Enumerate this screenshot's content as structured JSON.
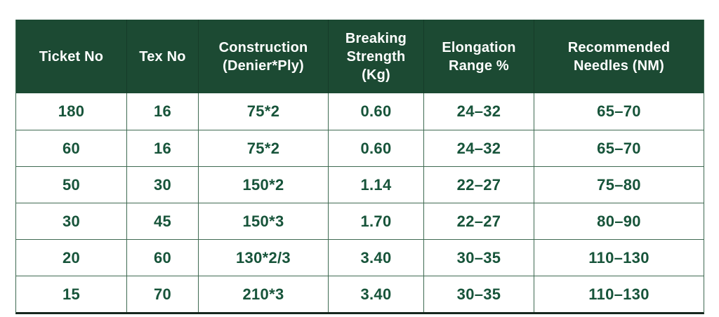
{
  "colors": {
    "header_bg": "#1c4a33",
    "header_text": "#ffffff",
    "cell_text": "#17543a",
    "grid_border": "#3f6a52",
    "bottom_border": "#16271e",
    "page_bg": "#ffffff"
  },
  "table": {
    "columns": [
      {
        "label": "Ticket No"
      },
      {
        "label": "Tex No"
      },
      {
        "label": "Construction\n(Denier*Ply)"
      },
      {
        "label": "Breaking\nStrength (Kg)"
      },
      {
        "label": "Elongation\nRange %"
      },
      {
        "label": "Recommended\nNeedles (NM)"
      }
    ],
    "rows": [
      [
        "180",
        "16",
        "75*2",
        "0.60",
        "24–32",
        "65–70"
      ],
      [
        "60",
        "16",
        "75*2",
        "0.60",
        "24–32",
        "65–70"
      ],
      [
        "50",
        "30",
        "150*2",
        "1.14",
        "22–27",
        "75–80"
      ],
      [
        "30",
        "45",
        "150*3",
        "1.70",
        "22–27",
        "80–90"
      ],
      [
        "20",
        "60",
        "130*2/3",
        "3.40",
        "30–35",
        "110–130"
      ],
      [
        "15",
        "70",
        "210*3",
        "3.40",
        "30–35",
        "110–130"
      ]
    ]
  },
  "chart_data": {
    "type": "table",
    "title": "",
    "columns": [
      "Ticket No",
      "Tex No",
      "Construction (Denier*Ply)",
      "Breaking Strength (Kg)",
      "Elongation Range %",
      "Recommended Needles (NM)"
    ],
    "rows": [
      [
        "180",
        "16",
        "75*2",
        "0.60",
        "24–32",
        "65–70"
      ],
      [
        "60",
        "16",
        "75*2",
        "0.60",
        "24–32",
        "65–70"
      ],
      [
        "50",
        "30",
        "150*2",
        "1.14",
        "22–27",
        "75–80"
      ],
      [
        "30",
        "45",
        "150*3",
        "1.70",
        "22–27",
        "80–90"
      ],
      [
        "20",
        "60",
        "130*2/3",
        "3.40",
        "30–35",
        "110–130"
      ],
      [
        "15",
        "70",
        "210*3",
        "3.40",
        "30–35",
        "110–130"
      ]
    ]
  }
}
